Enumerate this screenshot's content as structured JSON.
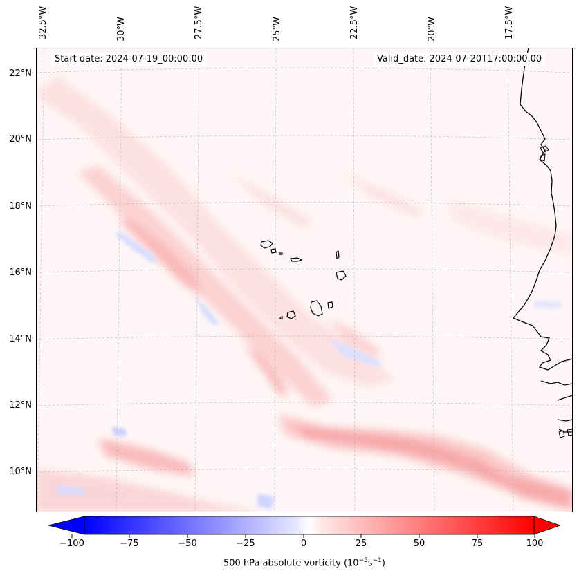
{
  "map": {
    "start_label": "Start date: 2024-07-19_00:00:00",
    "valid_label": "Valid_date: 2024-07-20T17:00:00.00",
    "lon_labels": [
      "32.5°W",
      "30°W",
      "27.5°W",
      "25°W",
      "22.5°W",
      "20°W",
      "17.5°W"
    ],
    "lat_labels": [
      "22°N",
      "20°N",
      "18°N",
      "16°N",
      "14°N",
      "12°N",
      "10°N"
    ],
    "field": "500 hPa absolute vorticity",
    "colors": {
      "negative": "#0000ff",
      "positive": "#ff0000",
      "neutral": "#ffffff",
      "coast": "#000000",
      "grid": "#b0b0b0"
    }
  },
  "colorbar": {
    "ticks": [
      "−100",
      "−75",
      "−50",
      "−25",
      "0",
      "25",
      "50",
      "75",
      "100"
    ],
    "values": [
      -100,
      -75,
      -50,
      -25,
      0,
      25,
      50,
      75,
      100
    ],
    "label_text": "500 hPa absolute vorticity (10",
    "label_exp1": "−5",
    "label_mid": "s",
    "label_exp2": "−1",
    "label_end": ")"
  }
}
